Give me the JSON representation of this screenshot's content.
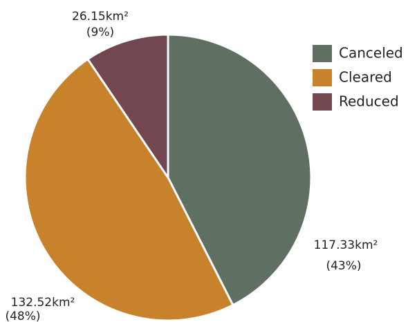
{
  "chart_data": {
    "type": "pie",
    "categories": [
      "Canceled",
      "Cleared",
      "Reduced"
    ],
    "values": [
      117.33,
      132.52,
      26.15
    ],
    "value_labels": [
      "117.33km²",
      "132.52km²",
      "26.15km²"
    ],
    "percent_labels": [
      "(43%)",
      "(48%)",
      "(9%)"
    ],
    "colors": [
      "#5f7063",
      "#c8822c",
      "#73474f"
    ],
    "legend": "top-right"
  }
}
